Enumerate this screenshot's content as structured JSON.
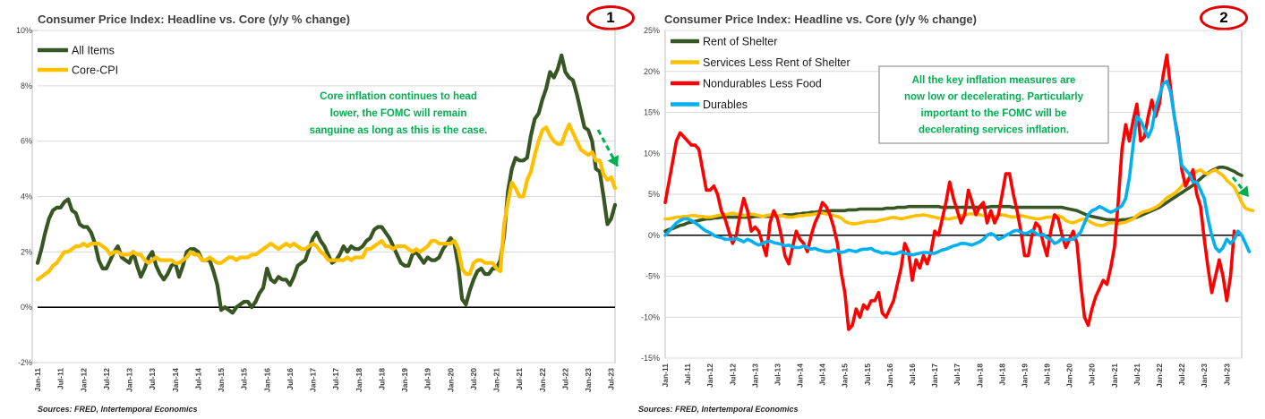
{
  "charts": [
    {
      "badge": "1",
      "source": "Sources: FRED, Intertemporal Economics",
      "colors": {
        "All Items": "#375623",
        "Core-CPI": "#ffc000",
        "annotation": "#00b050",
        "arrow": "#00b050"
      },
      "annotation": [
        "Core inflation continues to head",
        "lower, the FOMC will remain",
        "sanguine as long as this is the case."
      ]
    },
    {
      "badge": "2",
      "source": "Sources: FRED, Intertemporal Economics",
      "colors": {
        "Rent of Shelter": "#375623",
        "Services Less Rent of Shelter": "#ffc000",
        "Nondurables Less Food": "#ff0000",
        "Durables": "#00b0f0",
        "annotation": "#00b050",
        "arrow": "#00b050"
      },
      "annotation": [
        "All the key inflation measures are",
        "now low or decelerating.  Particularly",
        "important to the FOMC will be",
        "decelerating services inflation."
      ]
    }
  ],
  "chart_data": [
    {
      "type": "line",
      "title": "Consumer Price Index: Headline vs. Core (y/y % change)",
      "legend": "top-left",
      "grid": true,
      "ylim": [
        -2,
        10
      ],
      "yticks": [
        "-2%",
        "0%",
        "2%",
        "4%",
        "6%",
        "8%",
        "10%"
      ],
      "xticks": [
        "Jan-11",
        "Jul-11",
        "Jan-12",
        "Jul-12",
        "Jan-13",
        "Jul-13",
        "Jan-14",
        "Jul-14",
        "Jan-15",
        "Jul-15",
        "Jan-16",
        "Jul-16",
        "Jan-17",
        "Jul-17",
        "Jan-18",
        "Jul-18",
        "Jan-19",
        "Jul-19",
        "Jan-20",
        "Jul-20",
        "Jan-21",
        "Jul-21",
        "Jan-22",
        "Jul-22",
        "Jan-23",
        "Jul-23"
      ],
      "x_start": "2011-01",
      "series": [
        {
          "name": "All Items",
          "values": [
            1.6,
            2.1,
            2.7,
            3.2,
            3.5,
            3.6,
            3.6,
            3.8,
            3.9,
            3.5,
            3.4,
            3.0,
            2.9,
            2.9,
            2.7,
            2.3,
            1.7,
            1.4,
            1.4,
            1.7,
            2.0,
            2.2,
            1.8,
            1.7,
            1.6,
            2.0,
            1.5,
            1.1,
            1.4,
            1.8,
            2.0,
            1.5,
            1.2,
            1.0,
            1.2,
            1.5,
            1.6,
            1.1,
            1.5,
            2.0,
            2.1,
            2.1,
            2.0,
            1.7,
            1.7,
            1.7,
            1.3,
            0.8,
            -0.1,
            0.0,
            -0.1,
            -0.2,
            0.0,
            0.1,
            0.2,
            0.2,
            0.0,
            0.2,
            0.5,
            0.7,
            1.4,
            1.0,
            0.9,
            1.1,
            1.0,
            1.0,
            0.8,
            1.1,
            1.5,
            1.6,
            1.7,
            2.1,
            2.5,
            2.7,
            2.4,
            2.2,
            1.9,
            1.6,
            1.7,
            1.9,
            2.2,
            2.0,
            2.2,
            2.1,
            2.1,
            2.2,
            2.4,
            2.5,
            2.8,
            2.9,
            2.9,
            2.7,
            2.5,
            2.2,
            1.9,
            1.6,
            1.5,
            1.5,
            1.9,
            2.0,
            1.8,
            1.6,
            1.8,
            1.7,
            1.7,
            1.8,
            2.1,
            2.3,
            2.5,
            2.3,
            1.5,
            0.3,
            0.1,
            0.6,
            1.0,
            1.3,
            1.4,
            1.2,
            1.2,
            1.4,
            1.4,
            1.7,
            2.6,
            4.2,
            5.0,
            5.4,
            5.3,
            5.3,
            5.4,
            6.2,
            6.8,
            7.0,
            7.5,
            7.9,
            8.5,
            8.3,
            8.6,
            9.1,
            8.5,
            8.3,
            8.2,
            7.7,
            7.1,
            6.5,
            6.4,
            6.0,
            5.0,
            4.9,
            4.0,
            3.0,
            3.2,
            3.7
          ]
        },
        {
          "name": "Core-CPI",
          "values": [
            1.0,
            1.1,
            1.2,
            1.3,
            1.5,
            1.6,
            1.8,
            2.0,
            2.0,
            2.1,
            2.2,
            2.2,
            2.3,
            2.2,
            2.3,
            2.3,
            2.3,
            2.2,
            2.1,
            1.9,
            2.0,
            2.0,
            1.9,
            1.9,
            1.9,
            2.0,
            1.9,
            1.9,
            1.7,
            1.6,
            1.7,
            1.8,
            1.7,
            1.7,
            1.7,
            1.7,
            1.6,
            1.6,
            1.7,
            1.8,
            2.0,
            1.9,
            1.9,
            1.7,
            1.7,
            1.8,
            1.7,
            1.6,
            1.6,
            1.7,
            1.8,
            1.8,
            1.7,
            1.8,
            1.8,
            1.8,
            1.9,
            1.9,
            2.0,
            2.1,
            2.2,
            2.3,
            2.2,
            2.1,
            2.2,
            2.3,
            2.2,
            2.3,
            2.2,
            2.1,
            2.1,
            2.2,
            2.3,
            2.2,
            2.0,
            1.9,
            1.7,
            1.7,
            1.7,
            1.7,
            1.7,
            1.8,
            1.7,
            1.8,
            1.8,
            1.8,
            2.1,
            2.1,
            2.2,
            2.3,
            2.4,
            2.2,
            2.2,
            2.1,
            2.2,
            2.2,
            2.2,
            2.1,
            2.0,
            2.1,
            2.0,
            2.1,
            2.2,
            2.4,
            2.4,
            2.3,
            2.3,
            2.3,
            2.3,
            2.4,
            2.1,
            1.4,
            1.2,
            1.2,
            1.6,
            1.7,
            1.7,
            1.6,
            1.6,
            1.6,
            1.4,
            1.3,
            3.0,
            3.8,
            4.5,
            4.3,
            4.0,
            4.0,
            4.6,
            4.9,
            5.5,
            6.0,
            6.4,
            6.5,
            6.2,
            6.0,
            5.9,
            5.9,
            6.3,
            6.6,
            6.3,
            6.0,
            5.7,
            5.6,
            5.5,
            5.6,
            5.3,
            5.3,
            4.8,
            4.6,
            4.7,
            4.3
          ]
        }
      ]
    },
    {
      "type": "line",
      "title": "Consumer Price Index: Headline vs. Core (y/y % change)",
      "legend": "top-left",
      "grid": true,
      "ylim": [
        -15,
        25
      ],
      "yticks": [
        "-15%",
        "-10%",
        "-5%",
        "0%",
        "5%",
        "10%",
        "15%",
        "20%",
        "25%"
      ],
      "xticks": [
        "Jan-11",
        "Jul-11",
        "Jan-12",
        "Jul-12",
        "Jan-13",
        "Jul-13",
        "Jan-14",
        "Jul-14",
        "Jan-15",
        "Jul-15",
        "Jan-16",
        "Jul-16",
        "Jan-17",
        "Jul-17",
        "Jan-18",
        "Jul-18",
        "Jan-19",
        "Jul-19",
        "Jan-20",
        "Jul-20",
        "Jan-21",
        "Jul-21",
        "Jan-22",
        "Jul-22",
        "Jan-23",
        "Jul-23"
      ],
      "x_start": "2011-01",
      "series": [
        {
          "name": "Rent of Shelter",
          "values": [
            0.5,
            0.7,
            0.8,
            1.0,
            1.2,
            1.3,
            1.5,
            1.6,
            1.7,
            1.8,
            1.9,
            2.0,
            2.0,
            2.1,
            2.1,
            2.2,
            2.2,
            2.2,
            2.2,
            2.2,
            2.2,
            2.2,
            2.2,
            2.2,
            2.3,
            2.3,
            2.3,
            2.3,
            2.3,
            2.4,
            2.4,
            2.4,
            2.5,
            2.5,
            2.5,
            2.6,
            2.6,
            2.7,
            2.7,
            2.8,
            2.8,
            2.9,
            2.9,
            2.9,
            3.0,
            3.0,
            3.0,
            3.0,
            3.0,
            3.1,
            3.1,
            3.1,
            3.2,
            3.2,
            3.2,
            3.2,
            3.2,
            3.2,
            3.2,
            3.3,
            3.3,
            3.3,
            3.4,
            3.4,
            3.4,
            3.5,
            3.5,
            3.5,
            3.5,
            3.5,
            3.5,
            3.5,
            3.5,
            3.5,
            3.4,
            3.4,
            3.4,
            3.4,
            3.4,
            3.4,
            3.4,
            3.4,
            3.4,
            3.4,
            3.4,
            3.4,
            3.4,
            3.5,
            3.5,
            3.5,
            3.5,
            3.5,
            3.5,
            3.4,
            3.4,
            3.4,
            3.4,
            3.4,
            3.4,
            3.4,
            3.4,
            3.4,
            3.4,
            3.4,
            3.4,
            3.4,
            3.4,
            3.3,
            3.2,
            3.1,
            3.0,
            2.8,
            2.6,
            2.4,
            2.3,
            2.2,
            2.1,
            2.0,
            1.9,
            1.9,
            1.9,
            1.8,
            1.9,
            1.9,
            2.0,
            2.1,
            2.2,
            2.4,
            2.6,
            2.8,
            3.0,
            3.2,
            3.4,
            3.7,
            4.0,
            4.3,
            4.6,
            4.9,
            5.2,
            5.5,
            5.8,
            6.1,
            6.5,
            6.9,
            7.3,
            7.6,
            7.9,
            8.1,
            8.3,
            8.3,
            8.2,
            8.0,
            7.8,
            7.5,
            7.3
          ]
        },
        {
          "name": "Services Less Rent of Shelter",
          "values": [
            2.0,
            2.0,
            2.1,
            2.2,
            2.2,
            2.3,
            2.3,
            2.4,
            2.4,
            2.3,
            2.3,
            2.2,
            2.2,
            2.3,
            2.4,
            2.5,
            2.5,
            2.6,
            2.7,
            2.6,
            2.5,
            2.4,
            2.5,
            2.6,
            2.5,
            2.4,
            2.3,
            2.4,
            2.5,
            2.5,
            2.4,
            2.4,
            2.3,
            2.2,
            2.2,
            2.3,
            2.4,
            2.4,
            2.5,
            2.5,
            2.6,
            2.7,
            2.7,
            2.6,
            2.5,
            2.4,
            2.3,
            2.1,
            1.7,
            1.5,
            1.4,
            1.4,
            1.5,
            1.6,
            1.7,
            1.7,
            1.7,
            1.8,
            1.9,
            2.0,
            2.1,
            2.2,
            2.1,
            2.0,
            2.1,
            2.2,
            2.3,
            2.4,
            2.4,
            2.5,
            2.4,
            2.3,
            2.2,
            2.1,
            2.1,
            2.0,
            2.0,
            2.1,
            2.2,
            2.4,
            2.5,
            2.6,
            2.6,
            2.6,
            2.5,
            2.4,
            2.3,
            2.2,
            2.3,
            2.4,
            2.5,
            2.4,
            2.3,
            2.2,
            2.3,
            2.4,
            2.3,
            2.2,
            2.1,
            2.0,
            2.0,
            2.1,
            2.2,
            2.2,
            2.3,
            2.4,
            2.2,
            1.8,
            1.6,
            1.5,
            1.7,
            1.9,
            2.0,
            1.8,
            1.5,
            1.3,
            1.2,
            1.2,
            1.4,
            1.5,
            1.5,
            1.4,
            1.5,
            1.6,
            1.8,
            2.0,
            2.4,
            2.7,
            2.9,
            3.0,
            3.2,
            3.4,
            3.7,
            4.1,
            4.6,
            4.8,
            5.1,
            5.5,
            6.0,
            6.6,
            7.0,
            7.5,
            7.8,
            8.0,
            7.6,
            7.5,
            7.8,
            8.0,
            7.6,
            7.3,
            6.7,
            6.3,
            5.9,
            5.0,
            4.0,
            3.3,
            3.1,
            3.0
          ]
        },
        {
          "name": "Nondurables Less Food",
          "values": [
            4.0,
            6.5,
            9.0,
            11.5,
            12.5,
            12.0,
            11.5,
            11.0,
            11.0,
            10.5,
            8.0,
            5.5,
            5.5,
            6.0,
            5.0,
            3.0,
            2.0,
            0.5,
            -1.0,
            0.0,
            2.5,
            4.5,
            3.0,
            0.5,
            1.0,
            0.5,
            -1.0,
            -2.5,
            1.5,
            3.0,
            2.0,
            0.0,
            -2.5,
            -3.5,
            -1.5,
            0.5,
            -0.5,
            -1.0,
            -2.0,
            0.0,
            1.5,
            2.5,
            4.0,
            3.5,
            2.5,
            1.0,
            -1.0,
            -4.5,
            -7.0,
            -11.5,
            -11.0,
            -9.0,
            -10.0,
            -8.5,
            -9.0,
            -8.0,
            -8.0,
            -7.0,
            -9.5,
            -10.0,
            -9.0,
            -8.0,
            -6.0,
            -4.0,
            -1.0,
            -2.0,
            -5.5,
            -3.0,
            -4.0,
            -2.5,
            -3.5,
            -2.0,
            0.5,
            0.0,
            2.0,
            4.0,
            6.5,
            4.5,
            3.0,
            1.5,
            2.5,
            5.5,
            4.0,
            2.5,
            3.5,
            4.0,
            1.5,
            3.0,
            1.5,
            2.5,
            5.0,
            7.5,
            7.5,
            5.0,
            3.0,
            0.5,
            -2.5,
            -2.5,
            0.0,
            1.5,
            1.0,
            -1.0,
            -2.5,
            0.5,
            2.5,
            2.0,
            0.0,
            -1.5,
            -0.5,
            0.5,
            -1.0,
            -6.0,
            -10.0,
            -11.0,
            -9.0,
            -7.5,
            -6.5,
            -5.5,
            -6.0,
            -4.0,
            -1.5,
            4.0,
            10.5,
            13.5,
            11.5,
            14.0,
            16.0,
            11.5,
            12.0,
            14.5,
            16.5,
            14.5,
            16.0,
            19.5,
            22.0,
            18.0,
            14.5,
            12.0,
            8.0,
            6.0,
            7.0,
            8.0,
            5.0,
            3.5,
            -0.5,
            -4.0,
            -7.0,
            -5.0,
            -3.0,
            -5.0,
            -8.0,
            -5.0,
            0.5
          ]
        },
        {
          "name": "Durables",
          "values": [
            0.0,
            0.5,
            1.0,
            1.5,
            1.8,
            2.0,
            2.0,
            1.8,
            1.5,
            1.2,
            0.8,
            0.5,
            0.3,
            0.0,
            -0.2,
            -0.3,
            -0.5,
            -0.5,
            -0.5,
            -0.4,
            -0.6,
            -0.8,
            -0.5,
            -0.7,
            -1.0,
            -1.2,
            -1.0,
            -0.8,
            -0.7,
            -0.9,
            -1.0,
            -1.1,
            -1.3,
            -1.2,
            -1.4,
            -1.5,
            -1.5,
            -1.3,
            -1.5,
            -1.7,
            -1.6,
            -1.8,
            -1.9,
            -2.0,
            -2.0,
            -1.8,
            -1.9,
            -2.1,
            -2.0,
            -1.8,
            -1.9,
            -2.0,
            -1.8,
            -1.7,
            -1.7,
            -1.6,
            -1.9,
            -2.0,
            -2.2,
            -2.1,
            -2.2,
            -2.3,
            -2.2,
            -2.0,
            -2.2,
            -2.3,
            -2.4,
            -2.3,
            -2.2,
            -2.1,
            -2.1,
            -2.2,
            -2.2,
            -2.0,
            -1.8,
            -1.7,
            -1.5,
            -1.3,
            -1.2,
            -1.0,
            -1.0,
            -1.1,
            -1.2,
            -1.0,
            -0.8,
            -0.5,
            0.0,
            0.2,
            0.0,
            -0.5,
            -0.3,
            0.0,
            0.2,
            0.5,
            0.6,
            0.4,
            0.2,
            0.3,
            0.6,
            0.2,
            0.0,
            0.1,
            -0.3,
            -0.5,
            -1.0,
            -0.8,
            -0.4,
            -0.6,
            -0.5,
            -0.5,
            -0.1,
            0.4,
            1.5,
            2.5,
            3.0,
            3.2,
            3.5,
            3.3,
            3.0,
            2.8,
            3.0,
            3.3,
            3.6,
            4.5,
            7.0,
            11.0,
            14.5,
            14.0,
            13.0,
            12.0,
            13.0,
            15.5,
            17.0,
            18.5,
            18.8,
            17.5,
            14.5,
            11.5,
            8.5,
            8.0,
            7.5,
            6.5,
            6.5,
            5.5,
            4.5,
            2.0,
            0.0,
            -1.5,
            -2.0,
            -1.5,
            -0.5,
            -1.0,
            -0.5,
            0.5,
            0.0,
            -1.0,
            -2.0
          ]
        }
      ]
    }
  ]
}
